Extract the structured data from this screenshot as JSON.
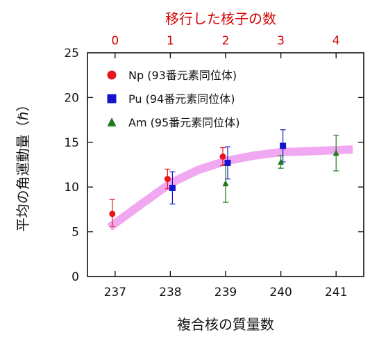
{
  "chart_data": {
    "type": "scatter",
    "top_axis_label": "移行した核子の数",
    "top_ticks": [
      "0",
      "1",
      "2",
      "3",
      "4"
    ],
    "xlabel": "複合核の質量数",
    "ylabel": "平均の角運動量（ℏ）",
    "x_ticks": [
      "237",
      "238",
      "239",
      "240",
      "241"
    ],
    "y_ticks": [
      "0",
      "5",
      "10",
      "15",
      "20",
      "25"
    ],
    "xlim": [
      236.5,
      241.5
    ],
    "ylim": [
      0,
      25
    ],
    "grid": false,
    "legend_position": "top-left",
    "series": [
      {
        "name": "Np (93番元素同位体)",
        "marker": "circle",
        "color": "#e8141b",
        "points": [
          {
            "x": 237,
            "y": 7.0,
            "yerr": [
              5.6,
              8.6
            ]
          },
          {
            "x": 238,
            "y": 10.9,
            "yerr": [
              9.8,
              12.0
            ]
          },
          {
            "x": 239,
            "y": 13.4,
            "yerr": [
              12.4,
              14.4
            ]
          }
        ]
      },
      {
        "name": "Pu (94番元素同位体)",
        "marker": "square",
        "color": "#1414cc",
        "points": [
          {
            "x": 238,
            "y": 9.9,
            "yerr": [
              8.1,
              11.7
            ]
          },
          {
            "x": 239,
            "y": 12.7,
            "yerr": [
              10.9,
              14.5
            ]
          },
          {
            "x": 240,
            "y": 14.6,
            "yerr": [
              12.8,
              16.4
            ]
          }
        ]
      },
      {
        "name": "Am (95番元素同位体)",
        "marker": "triangle",
        "color": "#1e7a1e",
        "points": [
          {
            "x": 239,
            "y": 10.4,
            "yerr": [
              8.3,
              12.5
            ]
          },
          {
            "x": 240,
            "y": 12.8,
            "yerr": [
              12.1,
              13.5
            ]
          },
          {
            "x": 241,
            "y": 13.8,
            "yerr": [
              11.8,
              15.8
            ]
          }
        ]
      }
    ],
    "trend": {
      "color": "#f0a8f0",
      "points": [
        {
          "x": 236.9,
          "y": 5.5
        },
        {
          "x": 237.5,
          "y": 8.2
        },
        {
          "x": 238.0,
          "y": 10.4
        },
        {
          "x": 238.5,
          "y": 11.9
        },
        {
          "x": 239.0,
          "y": 12.9
        },
        {
          "x": 239.5,
          "y": 13.5
        },
        {
          "x": 240.0,
          "y": 13.9
        },
        {
          "x": 240.5,
          "y": 14.0
        },
        {
          "x": 241.3,
          "y": 14.2
        }
      ]
    }
  }
}
